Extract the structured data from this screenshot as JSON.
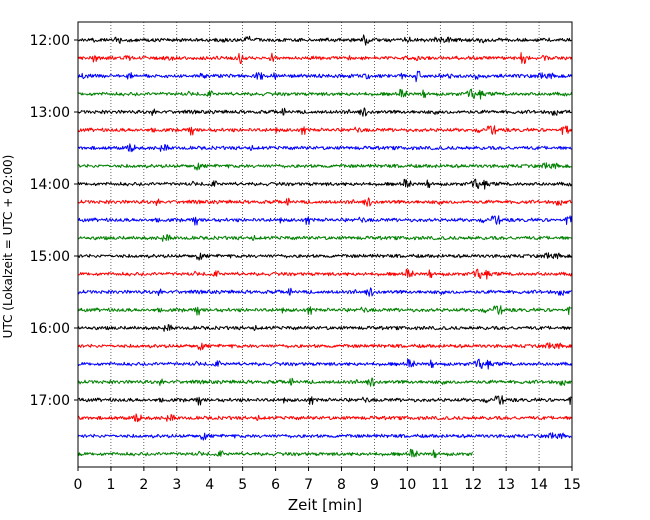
{
  "chart_data": {
    "type": "line",
    "title": "",
    "xlabel": "Zeit  [min]",
    "ylabel": "UTC (Lokalzeit = UTC + 02:00)",
    "xlim": [
      0,
      15
    ],
    "x_ticks": [
      0,
      1,
      2,
      3,
      4,
      5,
      6,
      7,
      8,
      9,
      10,
      11,
      12,
      13,
      14,
      15
    ],
    "x_tick_labels": [
      "0",
      "1",
      "2",
      "3",
      "4",
      "5",
      "6",
      "7",
      "8",
      "9",
      "10",
      "11",
      "12",
      "13",
      "14",
      "15"
    ],
    "y_ticks": [
      "12:00",
      "13:00",
      "14:00",
      "15:00",
      "16:00",
      "17:00"
    ],
    "grid": "vertical-dotted",
    "legend": "none",
    "color_cycle": [
      "#000000",
      "#ff0000",
      "#0000ff",
      "#008000"
    ],
    "series": [
      {
        "start": "12:00",
        "color": "#000000",
        "end_min": 15
      },
      {
        "start": "12:15",
        "color": "#ff0000",
        "end_min": 15
      },
      {
        "start": "12:30",
        "color": "#0000ff",
        "end_min": 15
      },
      {
        "start": "12:45",
        "color": "#008000",
        "end_min": 15
      },
      {
        "start": "13:00",
        "color": "#000000",
        "end_min": 15
      },
      {
        "start": "13:15",
        "color": "#ff0000",
        "end_min": 15
      },
      {
        "start": "13:30",
        "color": "#0000ff",
        "end_min": 15
      },
      {
        "start": "13:45",
        "color": "#008000",
        "end_min": 15
      },
      {
        "start": "14:00",
        "color": "#000000",
        "end_min": 15
      },
      {
        "start": "14:15",
        "color": "#ff0000",
        "end_min": 15
      },
      {
        "start": "14:30",
        "color": "#0000ff",
        "end_min": 15
      },
      {
        "start": "14:45",
        "color": "#008000",
        "end_min": 15
      },
      {
        "start": "15:00",
        "color": "#000000",
        "end_min": 15
      },
      {
        "start": "15:15",
        "color": "#ff0000",
        "end_min": 15
      },
      {
        "start": "15:30",
        "color": "#0000ff",
        "end_min": 15
      },
      {
        "start": "15:45",
        "color": "#008000",
        "end_min": 15
      },
      {
        "start": "16:00",
        "color": "#000000",
        "end_min": 15
      },
      {
        "start": "16:15",
        "color": "#ff0000",
        "end_min": 15
      },
      {
        "start": "16:30",
        "color": "#0000ff",
        "end_min": 15
      },
      {
        "start": "16:45",
        "color": "#008000",
        "end_min": 15
      },
      {
        "start": "17:00",
        "color": "#000000",
        "end_min": 15
      },
      {
        "start": "17:15",
        "color": "#ff0000",
        "end_min": 15
      },
      {
        "start": "17:30",
        "color": "#0000ff",
        "end_min": 15
      },
      {
        "start": "17:45",
        "color": "#008000",
        "end_min": 12
      }
    ]
  }
}
